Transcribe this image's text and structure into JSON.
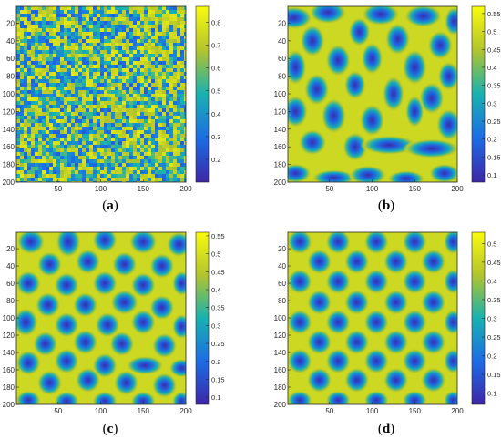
{
  "colors": {
    "low": "#3d26a8",
    "mid": "#17b2b0",
    "high": "#f9fb0e"
  },
  "chart_data": [
    {
      "type": "heatmap",
      "panel": "a",
      "caption": "(a)",
      "pattern": "noise",
      "xlim": [
        1,
        200
      ],
      "ylim": [
        1,
        200
      ],
      "y_reversed": true,
      "x_ticks": [
        50,
        100,
        150,
        200
      ],
      "y_ticks": [
        20,
        40,
        60,
        80,
        100,
        120,
        140,
        160,
        180,
        200
      ],
      "clim": [
        0.1,
        0.87
      ],
      "colorbar_ticks": [
        0.2,
        0.3,
        0.4,
        0.5,
        0.6,
        0.7,
        0.8
      ],
      "spots": []
    },
    {
      "type": "heatmap",
      "panel": "b",
      "caption": "(b)",
      "pattern": "spots",
      "xlim": [
        1,
        200
      ],
      "ylim": [
        1,
        200
      ],
      "y_reversed": true,
      "x_ticks": [
        50,
        100,
        150,
        200
      ],
      "y_ticks": [
        20,
        40,
        60,
        80,
        100,
        120,
        140,
        160,
        180,
        200
      ],
      "clim": [
        0.08,
        0.57
      ],
      "colorbar_ticks": [
        0.1,
        0.15,
        0.2,
        0.25,
        0.3,
        0.35,
        0.4,
        0.45,
        0.5,
        0.55
      ],
      "spots": [
        [
          8,
          14,
          12,
          7
        ],
        [
          48,
          8,
          12,
          7
        ],
        [
          110,
          10,
          12,
          7
        ],
        [
          160,
          12,
          12,
          7
        ],
        [
          196,
          18,
          6,
          9
        ],
        [
          30,
          40,
          8,
          10
        ],
        [
          85,
          30,
          7,
          9
        ],
        [
          130,
          38,
          8,
          10
        ],
        [
          180,
          45,
          8,
          9
        ],
        [
          10,
          70,
          7,
          11
        ],
        [
          60,
          62,
          8,
          10
        ],
        [
          100,
          60,
          7,
          10
        ],
        [
          150,
          70,
          8,
          11
        ],
        [
          190,
          80,
          7,
          9
        ],
        [
          35,
          95,
          8,
          10
        ],
        [
          80,
          90,
          7,
          9
        ],
        [
          125,
          100,
          7,
          11
        ],
        [
          170,
          105,
          8,
          10
        ],
        [
          10,
          120,
          8,
          10
        ],
        [
          55,
          125,
          8,
          11
        ],
        [
          100,
          130,
          8,
          10
        ],
        [
          150,
          120,
          6,
          10
        ],
        [
          190,
          135,
          8,
          10
        ],
        [
          30,
          155,
          9,
          8
        ],
        [
          80,
          160,
          8,
          9
        ],
        [
          120,
          158,
          18,
          6
        ],
        [
          170,
          162,
          18,
          6
        ],
        [
          10,
          190,
          10,
          6
        ],
        [
          55,
          195,
          14,
          5
        ],
        [
          95,
          192,
          12,
          6
        ],
        [
          140,
          196,
          12,
          5
        ],
        [
          185,
          190,
          10,
          6
        ]
      ]
    },
    {
      "type": "heatmap",
      "panel": "c",
      "caption": "(c)",
      "pattern": "spots",
      "xlim": [
        1,
        200
      ],
      "ylim": [
        1,
        200
      ],
      "y_reversed": true,
      "x_ticks": [
        50,
        100,
        150,
        200
      ],
      "y_ticks": [
        20,
        40,
        60,
        80,
        100,
        120,
        140,
        160,
        180,
        200
      ],
      "clim": [
        0.08,
        0.56
      ],
      "colorbar_ticks": [
        0.1,
        0.15,
        0.2,
        0.25,
        0.3,
        0.35,
        0.4,
        0.45,
        0.5,
        0.55
      ],
      "spots": [
        [
          18,
          12,
          9,
          8
        ],
        [
          62,
          12,
          8,
          10
        ],
        [
          105,
          10,
          8,
          8
        ],
        [
          150,
          12,
          9,
          8
        ],
        [
          192,
          15,
          8,
          8
        ],
        [
          40,
          38,
          8,
          8
        ],
        [
          85,
          35,
          8,
          8
        ],
        [
          128,
          38,
          8,
          8
        ],
        [
          172,
          40,
          8,
          8
        ],
        [
          15,
          60,
          8,
          8
        ],
        [
          60,
          62,
          8,
          8
        ],
        [
          105,
          60,
          8,
          8
        ],
        [
          150,
          62,
          8,
          8
        ],
        [
          195,
          60,
          6,
          8
        ],
        [
          38,
          85,
          8,
          8
        ],
        [
          82,
          85,
          8,
          8
        ],
        [
          128,
          82,
          9,
          8
        ],
        [
          172,
          88,
          8,
          8
        ],
        [
          12,
          105,
          8,
          9
        ],
        [
          60,
          108,
          8,
          8
        ],
        [
          108,
          108,
          8,
          8
        ],
        [
          150,
          105,
          8,
          8
        ],
        [
          195,
          110,
          6,
          8
        ],
        [
          35,
          130,
          8,
          8
        ],
        [
          82,
          128,
          8,
          8
        ],
        [
          125,
          130,
          8,
          8
        ],
        [
          175,
          132,
          8,
          8
        ],
        [
          15,
          152,
          8,
          8
        ],
        [
          60,
          150,
          8,
          8
        ],
        [
          105,
          155,
          8,
          8
        ],
        [
          152,
          155,
          12,
          6
        ],
        [
          195,
          158,
          8,
          6
        ],
        [
          40,
          175,
          8,
          8
        ],
        [
          85,
          172,
          8,
          8
        ],
        [
          130,
          175,
          8,
          8
        ],
        [
          175,
          178,
          8,
          8
        ],
        [
          15,
          195,
          8,
          6
        ],
        [
          60,
          196,
          8,
          6
        ],
        [
          105,
          196,
          8,
          6
        ],
        [
          150,
          196,
          8,
          6
        ],
        [
          195,
          196,
          6,
          6
        ]
      ]
    },
    {
      "type": "heatmap",
      "panel": "d",
      "caption": "(d)",
      "pattern": "spots",
      "xlim": [
        1,
        200
      ],
      "ylim": [
        1,
        200
      ],
      "y_reversed": true,
      "x_ticks": [
        50,
        100,
        150,
        200
      ],
      "y_ticks": [
        20,
        40,
        60,
        80,
        100,
        120,
        140,
        160,
        180,
        200
      ],
      "clim": [
        0.07,
        0.53
      ],
      "colorbar_ticks": [
        0.1,
        0.15,
        0.2,
        0.25,
        0.3,
        0.35,
        0.4,
        0.45,
        0.5
      ],
      "spots": [
        [
          15,
          12,
          8,
          8
        ],
        [
          60,
          12,
          8,
          8
        ],
        [
          105,
          12,
          8,
          8
        ],
        [
          150,
          12,
          8,
          8
        ],
        [
          195,
          12,
          6,
          8
        ],
        [
          38,
          35,
          8,
          8
        ],
        [
          82,
          35,
          8,
          8
        ],
        [
          128,
          35,
          8,
          8
        ],
        [
          172,
          35,
          8,
          8
        ],
        [
          15,
          58,
          8,
          8
        ],
        [
          60,
          58,
          8,
          8
        ],
        [
          105,
          58,
          8,
          8
        ],
        [
          150,
          58,
          8,
          8
        ],
        [
          195,
          58,
          6,
          8
        ],
        [
          38,
          82,
          8,
          8
        ],
        [
          82,
          82,
          8,
          8
        ],
        [
          128,
          82,
          8,
          8
        ],
        [
          172,
          82,
          8,
          8
        ],
        [
          15,
          105,
          8,
          8
        ],
        [
          60,
          105,
          8,
          8
        ],
        [
          105,
          105,
          8,
          8
        ],
        [
          150,
          105,
          8,
          8
        ],
        [
          195,
          105,
          6,
          8
        ],
        [
          38,
          128,
          8,
          8
        ],
        [
          82,
          128,
          8,
          8
        ],
        [
          128,
          128,
          8,
          8
        ],
        [
          172,
          128,
          8,
          8
        ],
        [
          15,
          150,
          8,
          8
        ],
        [
          60,
          150,
          8,
          8
        ],
        [
          105,
          150,
          8,
          8
        ],
        [
          150,
          150,
          8,
          8
        ],
        [
          195,
          150,
          6,
          8
        ],
        [
          38,
          172,
          8,
          8
        ],
        [
          82,
          172,
          8,
          8
        ],
        [
          128,
          172,
          8,
          8
        ],
        [
          172,
          172,
          8,
          8
        ],
        [
          15,
          195,
          8,
          6
        ],
        [
          60,
          195,
          8,
          6
        ],
        [
          105,
          195,
          8,
          6
        ],
        [
          150,
          195,
          8,
          6
        ],
        [
          195,
          195,
          6,
          6
        ]
      ]
    }
  ]
}
